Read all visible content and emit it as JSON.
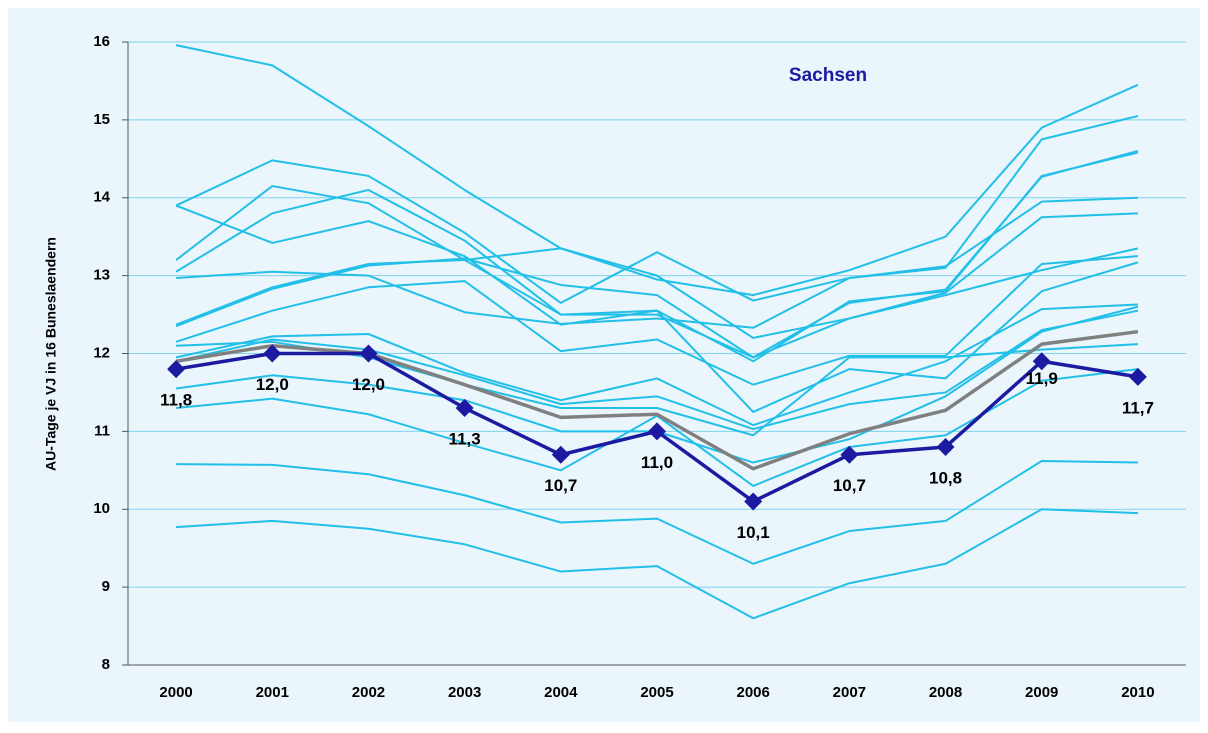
{
  "chart_data": {
    "type": "line",
    "y_label": "AU-Tage je VJ in 16 Buneslaendern",
    "categories": [
      "2000",
      "2001",
      "2002",
      "2003",
      "2004",
      "2005",
      "2006",
      "2007",
      "2008",
      "2009",
      "2010"
    ],
    "ylim": [
      8,
      16
    ],
    "yticks": [
      8,
      9,
      10,
      11,
      12,
      13,
      14,
      15,
      16
    ],
    "grid": true,
    "series": [
      {
        "color": "#22bfe8",
        "values": [
          15.96,
          15.7,
          14.92,
          14.1,
          13.35,
          12.95,
          12.75,
          13.07,
          13.5,
          14.9,
          15.45
        ]
      },
      {
        "color": "#22bfe8",
        "values": [
          13.9,
          14.48,
          14.28,
          13.55,
          12.65,
          13.3,
          12.68,
          12.97,
          13.1,
          14.75,
          15.05
        ]
      },
      {
        "color": "#22bfe8",
        "values": [
          13.2,
          14.15,
          13.93,
          13.2,
          12.5,
          12.5,
          11.95,
          12.65,
          12.82,
          14.27,
          14.6
        ]
      },
      {
        "color": "#22bfe8",
        "values": [
          13.05,
          13.8,
          14.1,
          13.45,
          12.5,
          12.55,
          11.9,
          12.67,
          12.8,
          14.28,
          14.58
        ]
      },
      {
        "color": "#22bfe8",
        "values": [
          12.97,
          13.05,
          13.0,
          12.53,
          12.38,
          12.45,
          12.33,
          12.97,
          13.12,
          13.95,
          14.0
        ]
      },
      {
        "color": "#22bfe8",
        "values": [
          12.37,
          12.85,
          13.15,
          13.2,
          13.35,
          13.0,
          12.2,
          12.45,
          12.78,
          13.75,
          13.8
        ]
      },
      {
        "color": "#22bfe8",
        "values": [
          12.35,
          12.83,
          13.13,
          13.22,
          12.88,
          12.75,
          11.95,
          12.45,
          12.75,
          13.07,
          13.35
        ]
      },
      {
        "color": "#22bfe8",
        "values": [
          12.15,
          12.55,
          12.85,
          12.93,
          12.03,
          12.18,
          11.6,
          11.97,
          11.97,
          13.15,
          13.25
        ]
      },
      {
        "color": "#22bfe8",
        "values": [
          13.9,
          13.42,
          13.7,
          13.25,
          12.37,
          12.55,
          11.25,
          11.8,
          11.68,
          12.8,
          13.17
        ]
      },
      {
        "color": "#22bfe8",
        "values": [
          11.95,
          12.22,
          12.25,
          11.75,
          11.4,
          11.68,
          11.08,
          11.5,
          11.9,
          12.57,
          12.63
        ]
      },
      {
        "color": "#22bfe8",
        "values": [
          11.9,
          12.18,
          12.05,
          11.72,
          11.35,
          11.45,
          11.03,
          11.35,
          11.5,
          12.3,
          12.55
        ]
      },
      {
        "color": "#22bfe8",
        "values": [
          12.1,
          12.15,
          11.95,
          11.6,
          11.3,
          11.3,
          10.95,
          11.95,
          11.95,
          12.05,
          12.12
        ]
      },
      {
        "color": "#22bfe8",
        "values": [
          11.55,
          11.72,
          11.6,
          11.4,
          11.0,
          11.0,
          10.6,
          10.9,
          11.45,
          12.28,
          12.6
        ]
      },
      {
        "color": "#22bfe8",
        "values": [
          11.3,
          11.42,
          11.22,
          10.85,
          10.5,
          11.2,
          10.3,
          10.8,
          10.95,
          11.65,
          11.8
        ]
      },
      {
        "color": "#22bfe8",
        "values": [
          10.58,
          10.57,
          10.45,
          10.18,
          9.83,
          9.88,
          9.3,
          9.72,
          9.85,
          10.62,
          10.6
        ]
      },
      {
        "color": "#22bfe8",
        "values": [
          9.77,
          9.85,
          9.75,
          9.55,
          9.2,
          9.27,
          8.6,
          9.05,
          9.3,
          10.0,
          9.95
        ]
      },
      {
        "color": "#808080",
        "values": [
          11.9,
          12.1,
          12.0,
          11.6,
          11.18,
          11.22,
          10.52,
          10.97,
          11.27,
          12.12,
          12.28
        ]
      },
      {
        "name": "Sachsen",
        "color": "#1c1aa0",
        "values": [
          11.8,
          12.0,
          12.0,
          11.3,
          10.7,
          11.0,
          10.1,
          10.7,
          10.8,
          11.9,
          11.7
        ],
        "value_labels": [
          "11,8",
          "12,0",
          "12,0",
          "11,3",
          "10,7",
          "11,0",
          "10,1",
          "10,7",
          "10,8",
          "11,9",
          "11,7"
        ]
      }
    ]
  }
}
